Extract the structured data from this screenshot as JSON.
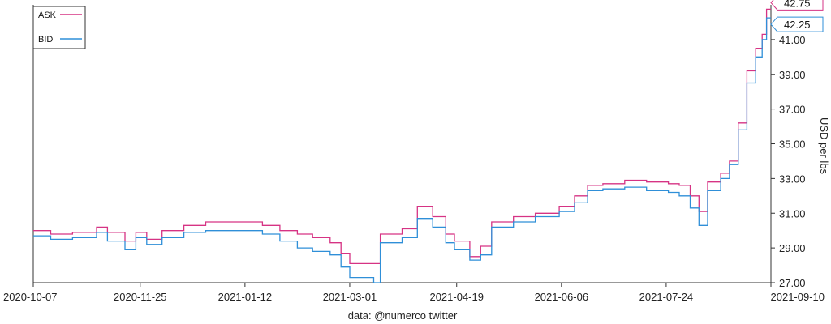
{
  "chart_data": {
    "type": "line",
    "title": "",
    "xlabel": "data: @numerco twitter",
    "ylabel": "USD per lbs",
    "xlim": [
      "2020-10-07",
      "2021-09-10"
    ],
    "ylim": [
      27.0,
      43.0
    ],
    "x_ticks": [
      "2020-10-07",
      "2020-11-25",
      "2021-01-12",
      "2021-03-01",
      "2021-04-19",
      "2021-06-06",
      "2021-07-24",
      "2021-09-10"
    ],
    "y_ticks": [
      "27.00",
      "29.00",
      "31.00",
      "33.00",
      "35.00",
      "37.00",
      "39.00",
      "41.00"
    ],
    "grid": false,
    "legend": "top-left",
    "last_value_labels": {
      "ASK": "42.75",
      "BID": "42.25"
    },
    "series": [
      {
        "name": "ASK",
        "color": "#d63384",
        "points": [
          [
            "2020-10-07",
            30.0
          ],
          [
            "2020-10-15",
            29.8
          ],
          [
            "2020-10-25",
            29.9
          ],
          [
            "2020-11-05",
            30.2
          ],
          [
            "2020-11-10",
            29.9
          ],
          [
            "2020-11-18",
            29.4
          ],
          [
            "2020-11-23",
            29.9
          ],
          [
            "2020-11-28",
            29.5
          ],
          [
            "2020-12-05",
            30.0
          ],
          [
            "2020-12-15",
            30.3
          ],
          [
            "2020-12-25",
            30.5
          ],
          [
            "2021-01-10",
            30.5
          ],
          [
            "2021-01-20",
            30.3
          ],
          [
            "2021-01-28",
            30.0
          ],
          [
            "2021-02-05",
            29.8
          ],
          [
            "2021-02-12",
            29.6
          ],
          [
            "2021-02-20",
            29.3
          ],
          [
            "2021-02-25",
            28.7
          ],
          [
            "2021-03-01",
            28.1
          ],
          [
            "2021-03-12",
            28.1
          ],
          [
            "2021-03-15",
            29.8
          ],
          [
            "2021-03-25",
            30.1
          ],
          [
            "2021-04-01",
            31.4
          ],
          [
            "2021-04-08",
            30.8
          ],
          [
            "2021-04-14",
            29.8
          ],
          [
            "2021-04-18",
            29.4
          ],
          [
            "2021-04-25",
            28.5
          ],
          [
            "2021-04-30",
            29.1
          ],
          [
            "2021-05-05",
            30.5
          ],
          [
            "2021-05-15",
            30.8
          ],
          [
            "2021-05-25",
            31.0
          ],
          [
            "2021-06-05",
            31.4
          ],
          [
            "2021-06-12",
            32.0
          ],
          [
            "2021-06-18",
            32.6
          ],
          [
            "2021-06-25",
            32.7
          ],
          [
            "2021-07-05",
            32.9
          ],
          [
            "2021-07-15",
            32.8
          ],
          [
            "2021-07-25",
            32.7
          ],
          [
            "2021-07-30",
            32.6
          ],
          [
            "2021-08-04",
            32.0
          ],
          [
            "2021-08-08",
            31.1
          ],
          [
            "2021-08-12",
            32.8
          ],
          [
            "2021-08-18",
            33.3
          ],
          [
            "2021-08-22",
            34.0
          ],
          [
            "2021-08-26",
            36.2
          ],
          [
            "2021-08-30",
            39.2
          ],
          [
            "2021-09-03",
            40.5
          ],
          [
            "2021-09-06",
            41.3
          ],
          [
            "2021-09-08",
            42.75
          ],
          [
            "2021-09-10",
            42.75
          ]
        ]
      },
      {
        "name": "BID",
        "color": "#2f8fd8",
        "points": [
          [
            "2020-10-07",
            29.7
          ],
          [
            "2020-10-15",
            29.5
          ],
          [
            "2020-10-25",
            29.6
          ],
          [
            "2020-11-05",
            29.9
          ],
          [
            "2020-11-10",
            29.4
          ],
          [
            "2020-11-18",
            28.9
          ],
          [
            "2020-11-23",
            29.6
          ],
          [
            "2020-11-28",
            29.2
          ],
          [
            "2020-12-05",
            29.6
          ],
          [
            "2020-12-15",
            29.9
          ],
          [
            "2020-12-25",
            30.0
          ],
          [
            "2021-01-10",
            30.0
          ],
          [
            "2021-01-20",
            29.8
          ],
          [
            "2021-01-28",
            29.4
          ],
          [
            "2021-02-05",
            29.0
          ],
          [
            "2021-02-12",
            28.8
          ],
          [
            "2021-02-20",
            28.6
          ],
          [
            "2021-02-25",
            27.9
          ],
          [
            "2021-03-01",
            27.3
          ],
          [
            "2021-03-12",
            27.0
          ],
          [
            "2021-03-15",
            29.3
          ],
          [
            "2021-03-25",
            29.6
          ],
          [
            "2021-04-01",
            30.7
          ],
          [
            "2021-04-08",
            30.2
          ],
          [
            "2021-04-14",
            29.3
          ],
          [
            "2021-04-18",
            28.9
          ],
          [
            "2021-04-25",
            28.3
          ],
          [
            "2021-04-30",
            28.6
          ],
          [
            "2021-05-05",
            30.2
          ],
          [
            "2021-05-15",
            30.5
          ],
          [
            "2021-05-25",
            30.8
          ],
          [
            "2021-06-05",
            31.1
          ],
          [
            "2021-06-12",
            31.6
          ],
          [
            "2021-06-18",
            32.3
          ],
          [
            "2021-06-25",
            32.4
          ],
          [
            "2021-07-05",
            32.5
          ],
          [
            "2021-07-15",
            32.3
          ],
          [
            "2021-07-25",
            32.2
          ],
          [
            "2021-07-30",
            32.0
          ],
          [
            "2021-08-04",
            31.3
          ],
          [
            "2021-08-08",
            30.3
          ],
          [
            "2021-08-12",
            32.3
          ],
          [
            "2021-08-18",
            33.0
          ],
          [
            "2021-08-22",
            33.8
          ],
          [
            "2021-08-26",
            35.8
          ],
          [
            "2021-08-30",
            38.5
          ],
          [
            "2021-09-03",
            40.0
          ],
          [
            "2021-09-06",
            41.0
          ],
          [
            "2021-09-08",
            42.25
          ],
          [
            "2021-09-10",
            42.25
          ]
        ]
      }
    ]
  }
}
